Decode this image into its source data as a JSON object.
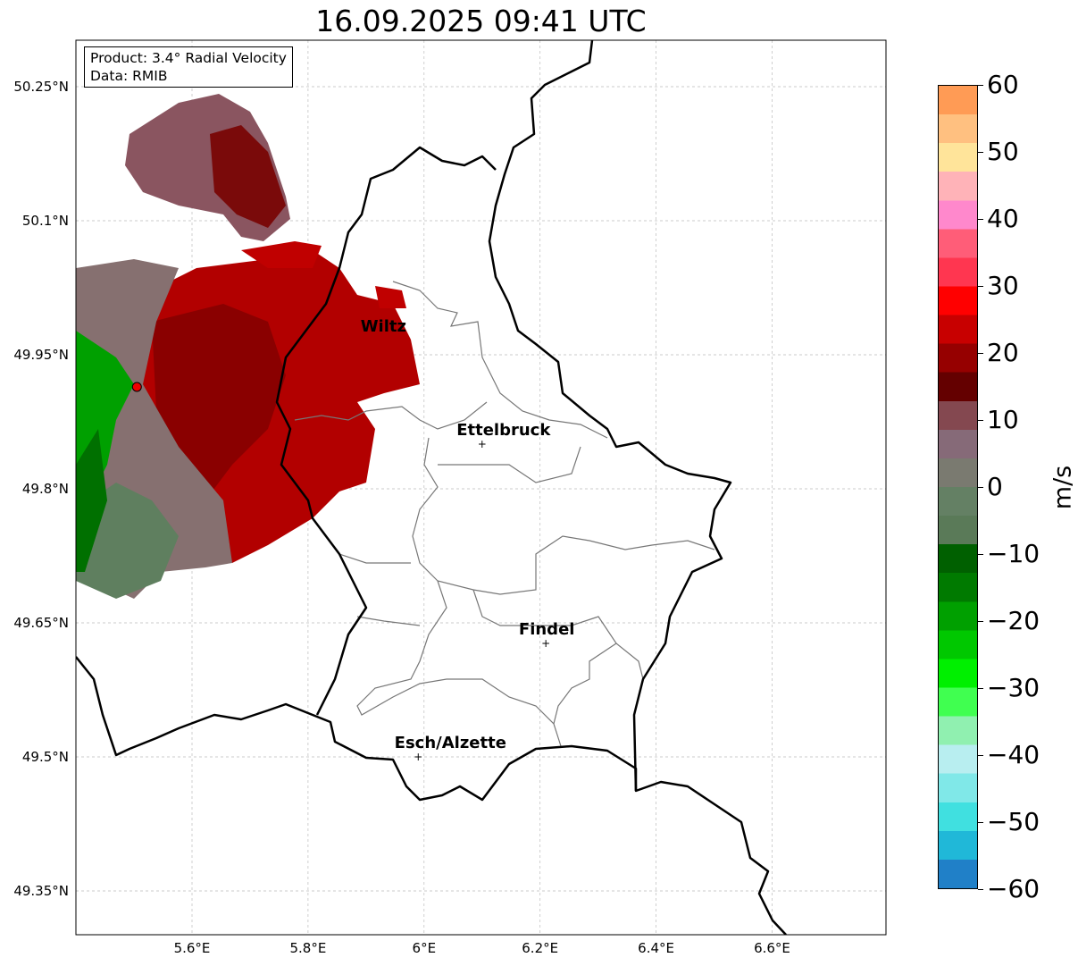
{
  "title": "16.09.2025 09:41 UTC",
  "info": {
    "product": "Product: 3.4° Radial Velocity",
    "data": "Data: RMIB"
  },
  "axes": {
    "lat_ticks": [
      "50.25°N",
      "50.1°N",
      "49.95°N",
      "49.8°N",
      "49.65°N",
      "49.5°N",
      "49.35°N"
    ],
    "lon_ticks": [
      "5.6°E",
      "5.8°E",
      "6°E",
      "6.2°E",
      "6.4°E",
      "6.6°E"
    ]
  },
  "cities": [
    {
      "name": "Wiltz",
      "lon": 5.93,
      "lat": 49.966
    },
    {
      "name": "Ettelbruck",
      "lon": 6.1,
      "lat": 49.85
    },
    {
      "name": "Findel",
      "lon": 6.21,
      "lat": 49.627
    },
    {
      "name": "Esch/Alzette",
      "lon": 5.99,
      "lat": 49.5
    }
  ],
  "radar_site": {
    "lon": 5.505,
    "lat": 49.914
  },
  "colorbar": {
    "label": "m/s",
    "ticks": [
      "60",
      "50",
      "40",
      "30",
      "20",
      "10",
      "0",
      "−10",
      "−20",
      "−30",
      "−40",
      "−50",
      "−60"
    ],
    "range": [
      -60,
      60
    ],
    "colors": [
      "#ff9b55",
      "#ffc080",
      "#ffe49a",
      "#ffb3b8",
      "#ff88cc",
      "#ff5d78",
      "#ff3650",
      "#ff0000",
      "#c80000",
      "#960000",
      "#640000",
      "#844850",
      "#866a78",
      "#7a7a70",
      "#648064",
      "#5a7a58",
      "#006000",
      "#007a00",
      "#00a000",
      "#00c800",
      "#00f000",
      "#40ff50",
      "#90f0b0",
      "#b8eef0",
      "#80e8e8",
      "#40e0e0",
      "#20b8d8",
      "#2080c8"
    ]
  }
}
